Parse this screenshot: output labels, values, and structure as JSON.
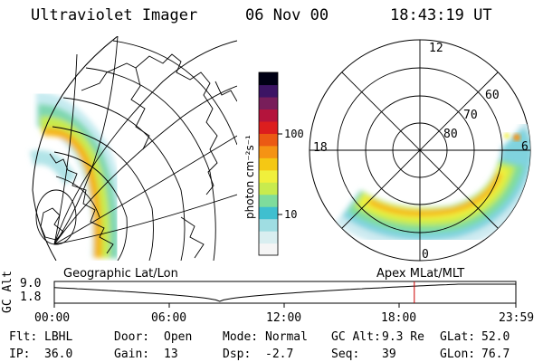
{
  "header": {
    "instrument": "Ultraviolet Imager",
    "date": "06 Nov 00",
    "time": "18:43:19 UT"
  },
  "colorbar": {
    "unit_label": "photon cm⁻²s⁻¹",
    "tick_high": "100",
    "tick_low": "10",
    "colors": [
      "#f5f5f5",
      "#d9eef0",
      "#9fdde2",
      "#3fbfcf",
      "#7fdc9c",
      "#c8eb4e",
      "#f0f03c",
      "#f5c814",
      "#f59314",
      "#eb5a14",
      "#dc1e1e",
      "#b4143c",
      "#781e5a",
      "#3c1464",
      "#000014"
    ]
  },
  "left_panel": {
    "projection_label": "Geographic Lat/Lon"
  },
  "right_panel": {
    "projection_label": "Apex MLat/MLT",
    "mlt_labels": {
      "top": "12",
      "left": "18",
      "right": "6",
      "bottom": "0"
    },
    "lat_labels": [
      "60",
      "70",
      "80"
    ]
  },
  "altitude_strip": {
    "axis_label": "GC Alt",
    "y_ticks": [
      "9.0",
      "1.8"
    ],
    "x_ticks": [
      "00:00",
      "06:00",
      "12:00",
      "18:00",
      "23:59"
    ],
    "current_time_hours": 18.72,
    "marker_color": "#cc0000"
  },
  "status": {
    "row1": [
      {
        "label": "Flt:",
        "value": "LBHL"
      },
      {
        "label": "Door:",
        "value": "Open"
      },
      {
        "label": "Mode:",
        "value": "Normal"
      },
      {
        "label": "GC Alt:",
        "value": "9.3 Re"
      },
      {
        "label": "GLat:",
        "value": "52.0"
      }
    ],
    "row2": [
      {
        "label": "IP:",
        "value": "36.0"
      },
      {
        "label": "Gain:",
        "value": "13"
      },
      {
        "label": "Dsp:",
        "value": "-2.7"
      },
      {
        "label": "Seq:",
        "value": "39"
      },
      {
        "label": "GLon:",
        "value": "76.7"
      }
    ]
  }
}
